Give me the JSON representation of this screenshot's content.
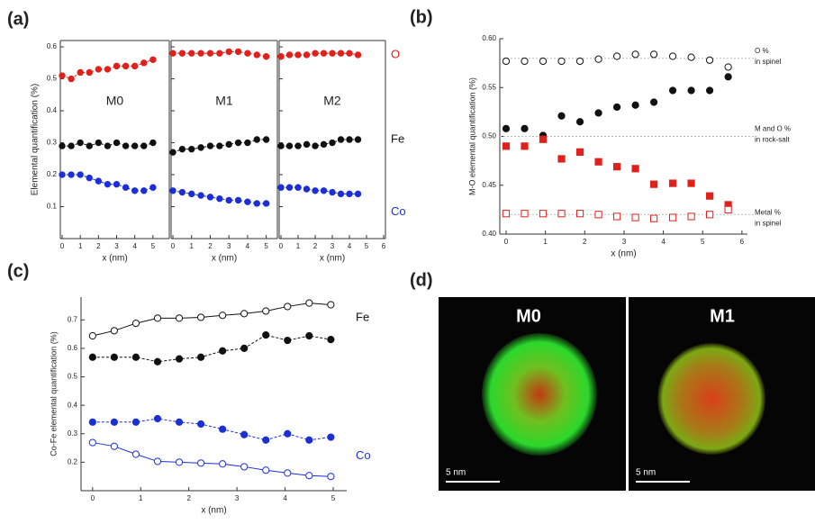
{
  "chart_data": [
    {
      "type": "line",
      "panel": "(a)",
      "ylabel": "Elemental quantification (%)",
      "ylim": [
        0,
        0.62
      ],
      "yticks": [
        0.1,
        0.2,
        0.3,
        0.4,
        0.5,
        0.6
      ],
      "subplots": [
        {
          "title": "M0",
          "xlabel": "x (nm)",
          "xlim": [
            0,
            5.8
          ],
          "xticks": [
            0,
            1,
            2,
            3,
            4,
            5
          ],
          "x": [
            0,
            0.5,
            1,
            1.5,
            2,
            2.5,
            3,
            3.5,
            4,
            4.5,
            5
          ],
          "series": [
            {
              "color": "#e0201b",
              "values": [
                0.51,
                0.5,
                0.52,
                0.52,
                0.53,
                0.53,
                0.54,
                0.54,
                0.54,
                0.55,
                0.56
              ]
            },
            {
              "color": "#111111",
              "values": [
                0.29,
                0.29,
                0.3,
                0.29,
                0.3,
                0.29,
                0.3,
                0.29,
                0.29,
                0.29,
                0.3
              ]
            },
            {
              "color": "#1c2fd6",
              "values": [
                0.2,
                0.2,
                0.2,
                0.19,
                0.18,
                0.17,
                0.17,
                0.16,
                0.15,
                0.15,
                0.16
              ]
            }
          ]
        },
        {
          "title": "M1",
          "xlabel": "x (nm)",
          "xlim": [
            0,
            5.5
          ],
          "xticks": [
            0,
            1,
            2,
            3,
            4,
            5
          ],
          "x": [
            0,
            0.5,
            1,
            1.5,
            2,
            2.5,
            3,
            3.5,
            4,
            4.5,
            5
          ],
          "series": [
            {
              "color": "#e0201b",
              "values": [
                0.58,
                0.58,
                0.58,
                0.58,
                0.58,
                0.58,
                0.585,
                0.585,
                0.58,
                0.575,
                0.57
              ]
            },
            {
              "color": "#111111",
              "values": [
                0.27,
                0.28,
                0.28,
                0.285,
                0.29,
                0.29,
                0.295,
                0.3,
                0.3,
                0.31,
                0.31
              ]
            },
            {
              "color": "#1c2fd6",
              "values": [
                0.15,
                0.145,
                0.14,
                0.135,
                0.13,
                0.125,
                0.12,
                0.12,
                0.115,
                0.11,
                0.11
              ]
            }
          ]
        },
        {
          "title": "M2",
          "xlabel": "x (nm)",
          "xlim": [
            0,
            6
          ],
          "xticks": [
            0,
            1,
            2,
            3,
            4,
            5,
            6
          ],
          "x": [
            0,
            0.5,
            1,
            1.5,
            2,
            2.5,
            3,
            3.5,
            4,
            4.5
          ],
          "series": [
            {
              "name": "O",
              "color": "#e0201b",
              "values": [
                0.57,
                0.575,
                0.575,
                0.575,
                0.58,
                0.58,
                0.58,
                0.58,
                0.58,
                0.575
              ]
            },
            {
              "name": "Fe",
              "color": "#111111",
              "values": [
                0.29,
                0.29,
                0.29,
                0.295,
                0.29,
                0.295,
                0.3,
                0.31,
                0.31,
                0.31
              ]
            },
            {
              "name": "Co",
              "color": "#1c2fd6",
              "values": [
                0.16,
                0.16,
                0.16,
                0.155,
                0.15,
                0.15,
                0.145,
                0.14,
                0.14,
                0.14
              ]
            }
          ]
        }
      ]
    },
    {
      "type": "scatter",
      "panel": "(b)",
      "xlabel": "x (nm)",
      "ylabel": "M-O elemental quantification (%)",
      "xlim": [
        -0.16,
        6.14
      ],
      "xticks": [
        0,
        1,
        2,
        3,
        4,
        5,
        6
      ],
      "ylim": [
        0.4,
        0.6
      ],
      "yticks": [
        {
          "value": 0.4,
          "label": "0.40"
        },
        {
          "value": 0.45,
          "label": "0.45"
        },
        {
          "value": 0.5,
          "label": "0.50"
        },
        {
          "value": 0.55,
          "label": "0.55"
        },
        {
          "value": 0.6,
          "label": "0.60"
        }
      ],
      "hlines": [
        0.58,
        0.5,
        0.42
      ],
      "annotations": [
        "O %",
        "in spinel",
        "M and O %",
        "in rock-salt",
        "Metal %",
        "in spinel"
      ],
      "x": [
        0,
        0.47,
        0.94,
        1.41,
        1.88,
        2.35,
        2.82,
        3.29,
        3.76,
        4.24,
        4.71,
        5.18,
        5.65
      ],
      "series": [
        {
          "color": "#111111",
          "marker": "circle",
          "fill": "open",
          "values": [
            0.577,
            0.577,
            0.577,
            0.577,
            0.577,
            0.579,
            0.582,
            0.584,
            0.584,
            0.582,
            0.581,
            0.578,
            0.571
          ]
        },
        {
          "color": "#111111",
          "marker": "circle",
          "fill": "filled",
          "values": [
            0.508,
            0.508,
            0.501,
            0.521,
            0.515,
            0.524,
            0.53,
            0.532,
            0.535,
            0.547,
            0.547,
            0.547,
            0.561
          ]
        },
        {
          "color": "#e0201b",
          "marker": "square",
          "fill": "filled",
          "values": [
            0.49,
            0.49,
            0.497,
            0.477,
            0.484,
            0.474,
            0.469,
            0.467,
            0.451,
            0.452,
            0.452,
            0.439,
            0.43
          ]
        },
        {
          "color": "#e0201b",
          "marker": "square",
          "fill": "open",
          "values": [
            0.421,
            0.421,
            0.421,
            0.421,
            0.421,
            0.42,
            0.418,
            0.417,
            0.416,
            0.417,
            0.418,
            0.42,
            0.425
          ]
        }
      ]
    },
    {
      "type": "line",
      "panel": "(c)",
      "xlabel": "x (nm)",
      "ylabel": "Co-Fe elemental quantification (%)",
      "xlim": [
        -0.24,
        5.28
      ],
      "xticks": [
        0,
        1,
        2,
        3,
        4,
        5
      ],
      "ylim": [
        0.1,
        0.78
      ],
      "yticks": [
        0.2,
        0.3,
        0.4,
        0.5,
        0.6,
        0.7
      ],
      "x": [
        0,
        0.45,
        0.9,
        1.35,
        1.8,
        2.25,
        2.7,
        3.15,
        3.6,
        4.05,
        4.5,
        4.95
      ],
      "series": [
        {
          "name": "Fe",
          "color": "#111111",
          "fill": "open",
          "line": "solid",
          "values": [
            0.644,
            0.662,
            0.688,
            0.706,
            0.706,
            0.709,
            0.716,
            0.722,
            0.731,
            0.747,
            0.759,
            0.753
          ]
        },
        {
          "color": "#111111",
          "fill": "filled",
          "line": "dashed",
          "values": [
            0.569,
            0.569,
            0.569,
            0.553,
            0.563,
            0.569,
            0.591,
            0.6,
            0.647,
            0.628,
            0.644,
            0.631
          ]
        },
        {
          "color": "#1c2fd6",
          "fill": "filled",
          "line": "dashed",
          "values": [
            0.341,
            0.341,
            0.341,
            0.353,
            0.341,
            0.334,
            0.316,
            0.297,
            0.278,
            0.3,
            0.278,
            0.288
          ]
        },
        {
          "name": "Co",
          "color": "#1c2fd6",
          "fill": "open",
          "line": "solid",
          "values": [
            0.269,
            0.256,
            0.228,
            0.203,
            0.2,
            0.197,
            0.194,
            0.184,
            0.172,
            0.162,
            0.153,
            0.15
          ]
        }
      ]
    }
  ],
  "panel_d": {
    "label": "(d)",
    "images": [
      {
        "title": "M0",
        "scale_bar": "5 nm"
      },
      {
        "title": "M1",
        "scale_bar": "5 nm"
      }
    ]
  }
}
